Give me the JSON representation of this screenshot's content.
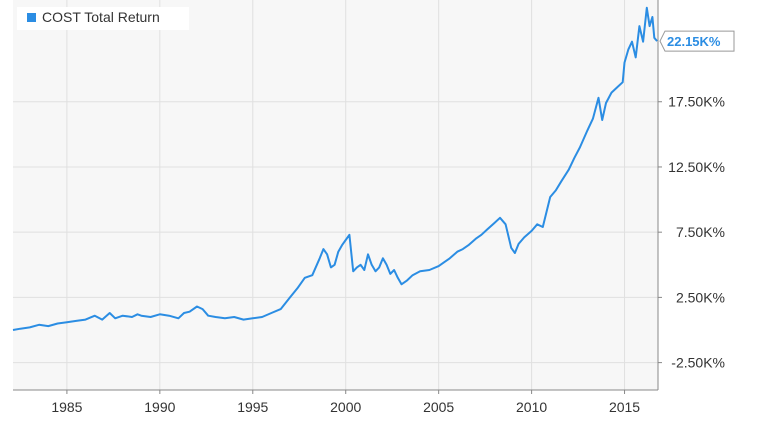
{
  "chart_data": {
    "type": "line",
    "series": [
      {
        "name": "COST Total Return",
        "unit": "K%",
        "x": [
          1982.1,
          1982.5,
          1983.0,
          1983.5,
          1984.0,
          1984.5,
          1985.0,
          1985.5,
          1986.0,
          1986.5,
          1986.9,
          1987.3,
          1987.6,
          1988.0,
          1988.5,
          1988.8,
          1989.0,
          1989.5,
          1990.0,
          1990.5,
          1991.0,
          1991.3,
          1991.6,
          1992.0,
          1992.3,
          1992.6,
          1993.0,
          1993.5,
          1994.0,
          1994.5,
          1995.0,
          1995.5,
          1996.0,
          1996.5,
          1997.0,
          1997.4,
          1997.8,
          1998.2,
          1998.6,
          1998.8,
          1999.0,
          1999.2,
          1999.4,
          1999.6,
          1999.8,
          2000.0,
          2000.2,
          2000.4,
          2000.6,
          2000.8,
          2001.0,
          2001.2,
          2001.4,
          2001.6,
          2001.8,
          2002.0,
          2002.2,
          2002.4,
          2002.6,
          2002.8,
          2003.0,
          2003.3,
          2003.6,
          2004.0,
          2004.5,
          2005.0,
          2005.3,
          2005.6,
          2006.0,
          2006.3,
          2006.6,
          2007.0,
          2007.3,
          2007.6,
          2008.0,
          2008.3,
          2008.6,
          2008.9,
          2009.1,
          2009.3,
          2009.6,
          2010.0,
          2010.3,
          2010.6,
          2011.0,
          2011.3,
          2011.6,
          2012.0,
          2012.3,
          2012.6,
          2013.0,
          2013.3,
          2013.6,
          2013.8,
          2014.0,
          2014.3,
          2014.6,
          2014.9,
          2015.0,
          2015.2,
          2015.4,
          2015.6,
          2015.8,
          2016.0,
          2016.2,
          2016.35,
          2016.5,
          2016.6,
          2016.75
        ],
        "y": [
          0.0,
          0.1,
          0.2,
          0.4,
          0.3,
          0.5,
          0.6,
          0.7,
          0.8,
          1.1,
          0.8,
          1.3,
          0.9,
          1.1,
          1.0,
          1.2,
          1.1,
          1.0,
          1.2,
          1.1,
          0.9,
          1.3,
          1.4,
          1.8,
          1.6,
          1.1,
          1.0,
          0.9,
          1.0,
          0.8,
          0.9,
          1.0,
          1.3,
          1.6,
          2.5,
          3.2,
          4.0,
          4.2,
          5.5,
          6.2,
          5.8,
          4.8,
          5.0,
          6.0,
          6.5,
          6.9,
          7.3,
          4.5,
          4.8,
          5.0,
          4.6,
          5.8,
          5.0,
          4.5,
          4.8,
          5.5,
          5.0,
          4.3,
          4.6,
          4.0,
          3.5,
          3.8,
          4.2,
          4.5,
          4.6,
          4.9,
          5.2,
          5.5,
          6.0,
          6.2,
          6.5,
          7.0,
          7.3,
          7.7,
          8.2,
          8.6,
          8.1,
          6.3,
          5.9,
          6.6,
          7.1,
          7.6,
          8.1,
          7.9,
          10.2,
          10.7,
          11.4,
          12.3,
          13.2,
          14.0,
          15.3,
          16.2,
          17.8,
          16.1,
          17.4,
          18.2,
          18.6,
          19.0,
          20.5,
          21.5,
          22.1,
          20.9,
          23.3,
          22.1,
          24.7,
          23.3,
          24.0,
          22.4,
          22.15
        ]
      }
    ],
    "ylim": [
      -4.6,
      25.3
    ],
    "xlim": [
      1982.1,
      2016.8
    ],
    "xticks": [
      "1985",
      "1990",
      "1995",
      "2000",
      "2005",
      "2010",
      "2015"
    ],
    "xtick_values": [
      1985,
      1990,
      1995,
      2000,
      2005,
      2010,
      2015
    ],
    "yticks": [
      "-2.50K%",
      "2.50K%",
      "7.50K%",
      "12.50K%",
      "17.50K%"
    ],
    "ytick_values": [
      -2.5,
      2.5,
      7.5,
      12.5,
      17.5
    ],
    "grid": true,
    "legend_position": "top-left",
    "last_value_label": "22.15K%",
    "last_value": 22.15,
    "colors": {
      "line": "#2b8de3",
      "legend_marker": "#2b8de3",
      "plot_bg": "#f7f7f7",
      "grid": "#e0e0e0",
      "axis_text": "#333333",
      "tag_border": "#999999"
    }
  }
}
